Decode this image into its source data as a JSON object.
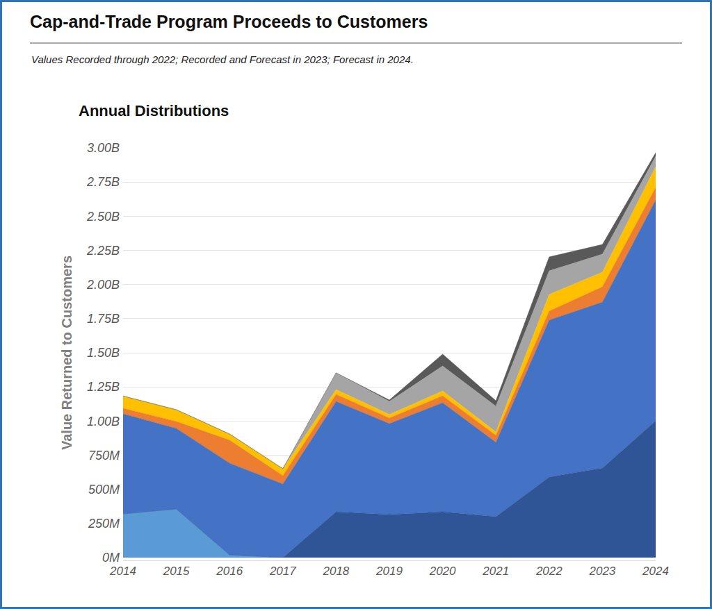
{
  "chart_data": {
    "type": "area",
    "title": "Cap-and-Trade Program Proceeds to Customers",
    "subtitle": "Values Recorded through 2022; Recorded and Forecast in 2023; Forecast in 2024.",
    "annotations": [
      "Annual Distributions"
    ],
    "ylabel": "Value Returned to Customers",
    "stacked": true,
    "grid": true,
    "x": [
      2014,
      2015,
      2016,
      2017,
      2018,
      2019,
      2020,
      2021,
      2022,
      2023,
      2024
    ],
    "xlim": [
      2014,
      2024
    ],
    "xticks": [
      2014,
      2015,
      2016,
      2017,
      2018,
      2019,
      2020,
      2021,
      2022,
      2023,
      2024
    ],
    "ylim": [
      0,
      3000
    ],
    "yticks": [
      {
        "value": 0,
        "label": "0M"
      },
      {
        "value": 250,
        "label": "250M"
      },
      {
        "value": 500,
        "label": "500M"
      },
      {
        "value": 750,
        "label": "750M"
      },
      {
        "value": 1000,
        "label": "1.00B"
      },
      {
        "value": 1250,
        "label": "1.25B"
      },
      {
        "value": 1500,
        "label": "1.50B"
      },
      {
        "value": 1750,
        "label": "1.75B"
      },
      {
        "value": 2000,
        "label": "2.00B"
      },
      {
        "value": 2250,
        "label": "2.25B"
      },
      {
        "value": 2500,
        "label": "2.50B"
      },
      {
        "value": 2750,
        "label": "2.75B"
      },
      {
        "value": 3000,
        "label": "3.00B"
      }
    ],
    "series": [
      {
        "color": "#5b9bd5",
        "values": [
          320,
          356,
          20,
          0,
          0,
          0,
          0,
          0,
          0,
          0,
          0
        ]
      },
      {
        "color": "#2f5597",
        "values": [
          0,
          0,
          0,
          0,
          336,
          315,
          336,
          300,
          590,
          656,
          1002
        ]
      },
      {
        "color": "#4472c4",
        "values": [
          733,
          590,
          672,
          539,
          808,
          666,
          798,
          544,
          1149,
          1215,
          1617
        ]
      },
      {
        "color": "#ed7d31",
        "values": [
          40,
          51,
          168,
          61,
          51,
          41,
          51,
          51,
          66,
          112,
          91
        ]
      },
      {
        "color": "#ffc000",
        "values": [
          90,
          86,
          45,
          51,
          36,
          26,
          35,
          25,
          122,
          107,
          153
        ]
      },
      {
        "color": "#a5a5a5",
        "values": [
          0,
          0,
          0,
          0,
          122,
          96,
          183,
          189,
          173,
          132,
          76
        ]
      },
      {
        "color": "#595959",
        "values": [
          0,
          0,
          0,
          0,
          0,
          10,
          87,
          40,
          102,
          71,
          26
        ]
      }
    ]
  }
}
